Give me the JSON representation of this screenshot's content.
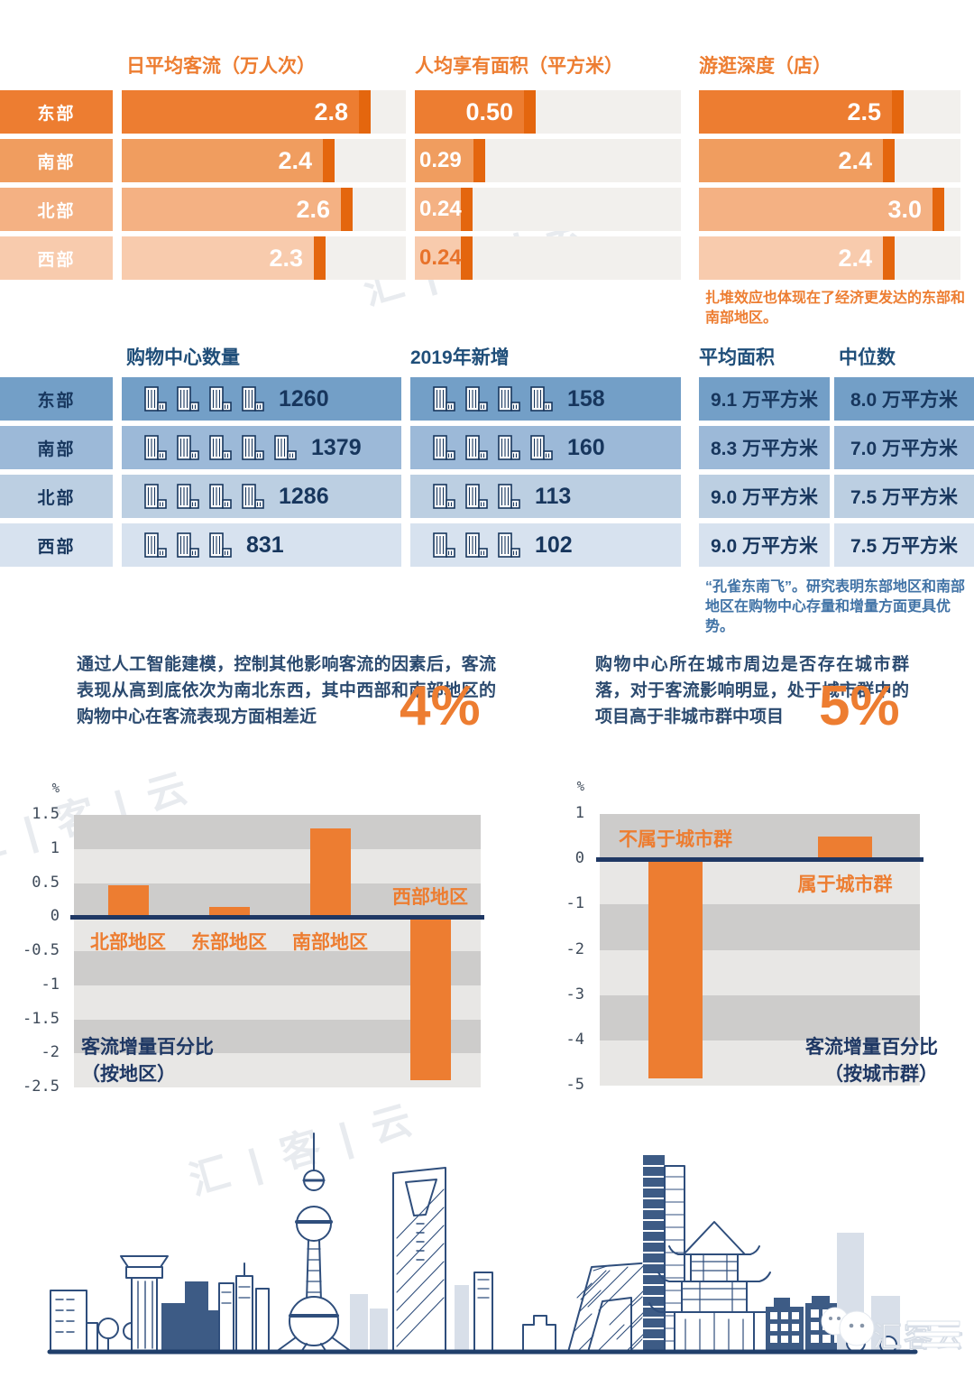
{
  "colors": {
    "accent_orange": "#ED7D31",
    "orange_cap": "#E4660E",
    "orange_row_shades": [
      "#ED7D31",
      "#F09D5F",
      "#F4B183",
      "#F8CBAD"
    ],
    "orange_track": "#F2F0ED",
    "blue_row_shades": [
      "#739FC7",
      "#9CB9D8",
      "#BCCFE2",
      "#D7E2EF"
    ],
    "navy": "#1F3864",
    "table_header_blue": "#1F4E79",
    "table_text": "#17365D",
    "note_orange": "#ED7D31",
    "note_blue": "#4173A6",
    "band_dark": "#CDCCCB",
    "band_light": "#E8E7E5",
    "tick_text": "#3E4A59",
    "skyline_stroke": "#2F4E7C"
  },
  "notes": {
    "cluster_note": "扎堆效应也体现在了经济更发达的东部和南部地区。",
    "peacock_note": "“孔雀东南飞”。研究表明东部地区和南部地区在购物中心存量和增量方面更具优势。"
  },
  "paragraphs": [
    {
      "text": "通过人工智能建模，控制其他影响客流的因素后，客流表现从高到底依次为南北东西，其中西部和南部地区的购物中心在客流表现方面相差近",
      "big": "4%"
    },
    {
      "text": "购物中心所在城市周边是否存在城市群落，对于客流影响明显，处于城市群中的项目高于非城市群中项目",
      "big": "5%"
    }
  ],
  "watermark": {
    "logo": "汇客云",
    "faint": "汇 | 客 | 云"
  },
  "chart_data": [
    {
      "type": "bar",
      "orientation": "horizontal",
      "title": "日平均客流（万人次）",
      "categories": [
        "东部",
        "南部",
        "北部",
        "西部"
      ],
      "values": [
        2.8,
        2.4,
        2.6,
        2.3
      ],
      "value_labels": [
        "2.8",
        "2.4",
        "2.6",
        "2.3"
      ],
      "xlim": [
        0,
        3.2
      ]
    },
    {
      "type": "bar",
      "orientation": "horizontal",
      "title": "人均享有面积（平方米）",
      "categories": [
        "东部",
        "南部",
        "北部",
        "西部"
      ],
      "values": [
        0.5,
        0.29,
        0.24,
        0.24
      ],
      "value_labels": [
        "0.50",
        "0.29",
        "0.24",
        "0.24"
      ],
      "xlim": [
        0,
        1.1
      ],
      "value_colors": [
        "#FFFFFF",
        "#FFFFFF",
        "#FFFFFF",
        "#E8722A"
      ]
    },
    {
      "type": "bar",
      "orientation": "horizontal",
      "title": "游逛深度（店）",
      "categories": [
        "东部",
        "南部",
        "北部",
        "西部"
      ],
      "values": [
        2.5,
        2.4,
        3.0,
        2.4
      ],
      "value_labels": [
        "2.5",
        "2.4",
        "3.0",
        "2.4"
      ],
      "xlim": [
        0,
        3.2
      ]
    },
    {
      "type": "table",
      "columns": [
        "购物中心数量",
        "2019年新增",
        "平均面积",
        "中位数"
      ],
      "rows": [
        {
          "region": "东部",
          "count": "1260",
          "icons_count": 4,
          "added": "158",
          "icons_added": 4,
          "avg_area": "9.1 万平方米",
          "median": "8.0 万平方米"
        },
        {
          "region": "南部",
          "count": "1379",
          "icons_count": 5,
          "added": "160",
          "icons_added": 4,
          "avg_area": "8.3 万平方米",
          "median": "7.0 万平方米"
        },
        {
          "region": "北部",
          "count": "1286",
          "icons_count": 4,
          "added": "113",
          "icons_added": 3,
          "avg_area": "9.0 万平方米",
          "median": "7.5 万平方米"
        },
        {
          "region": "西部",
          "count": "831",
          "icons_count": 3,
          "added": "102",
          "icons_added": 3,
          "avg_area": "9.0 万平方米",
          "median": "7.5 万平方米"
        }
      ]
    },
    {
      "type": "bar",
      "title": "客流增量百分比（按地区）",
      "caption_lines": [
        "客流增量百分比",
        "（按地区）"
      ],
      "unit": "%",
      "categories": [
        "北部地区",
        "东部地区",
        "南部地区",
        "西部地区"
      ],
      "values": [
        0.47,
        0.15,
        1.3,
        -2.4
      ],
      "ylim": [
        -2.5,
        1.5
      ],
      "yticks": [
        1.5,
        1,
        0.5,
        0,
        -0.5,
        -1,
        -1.5,
        -2,
        -2.5
      ],
      "grid": "banded",
      "legend": "none"
    },
    {
      "type": "bar",
      "title": "客流增量百分比（按城市群）",
      "caption_lines": [
        "客流增量百分比",
        "（按城市群）"
      ],
      "unit": "%",
      "categories": [
        "不属于城市群",
        "属于城市群"
      ],
      "values": [
        -4.85,
        0.5
      ],
      "ylim": [
        -5,
        1
      ],
      "yticks": [
        1,
        0,
        -1,
        -2,
        -3,
        -4,
        -5
      ],
      "grid": "banded",
      "legend": "none"
    }
  ]
}
